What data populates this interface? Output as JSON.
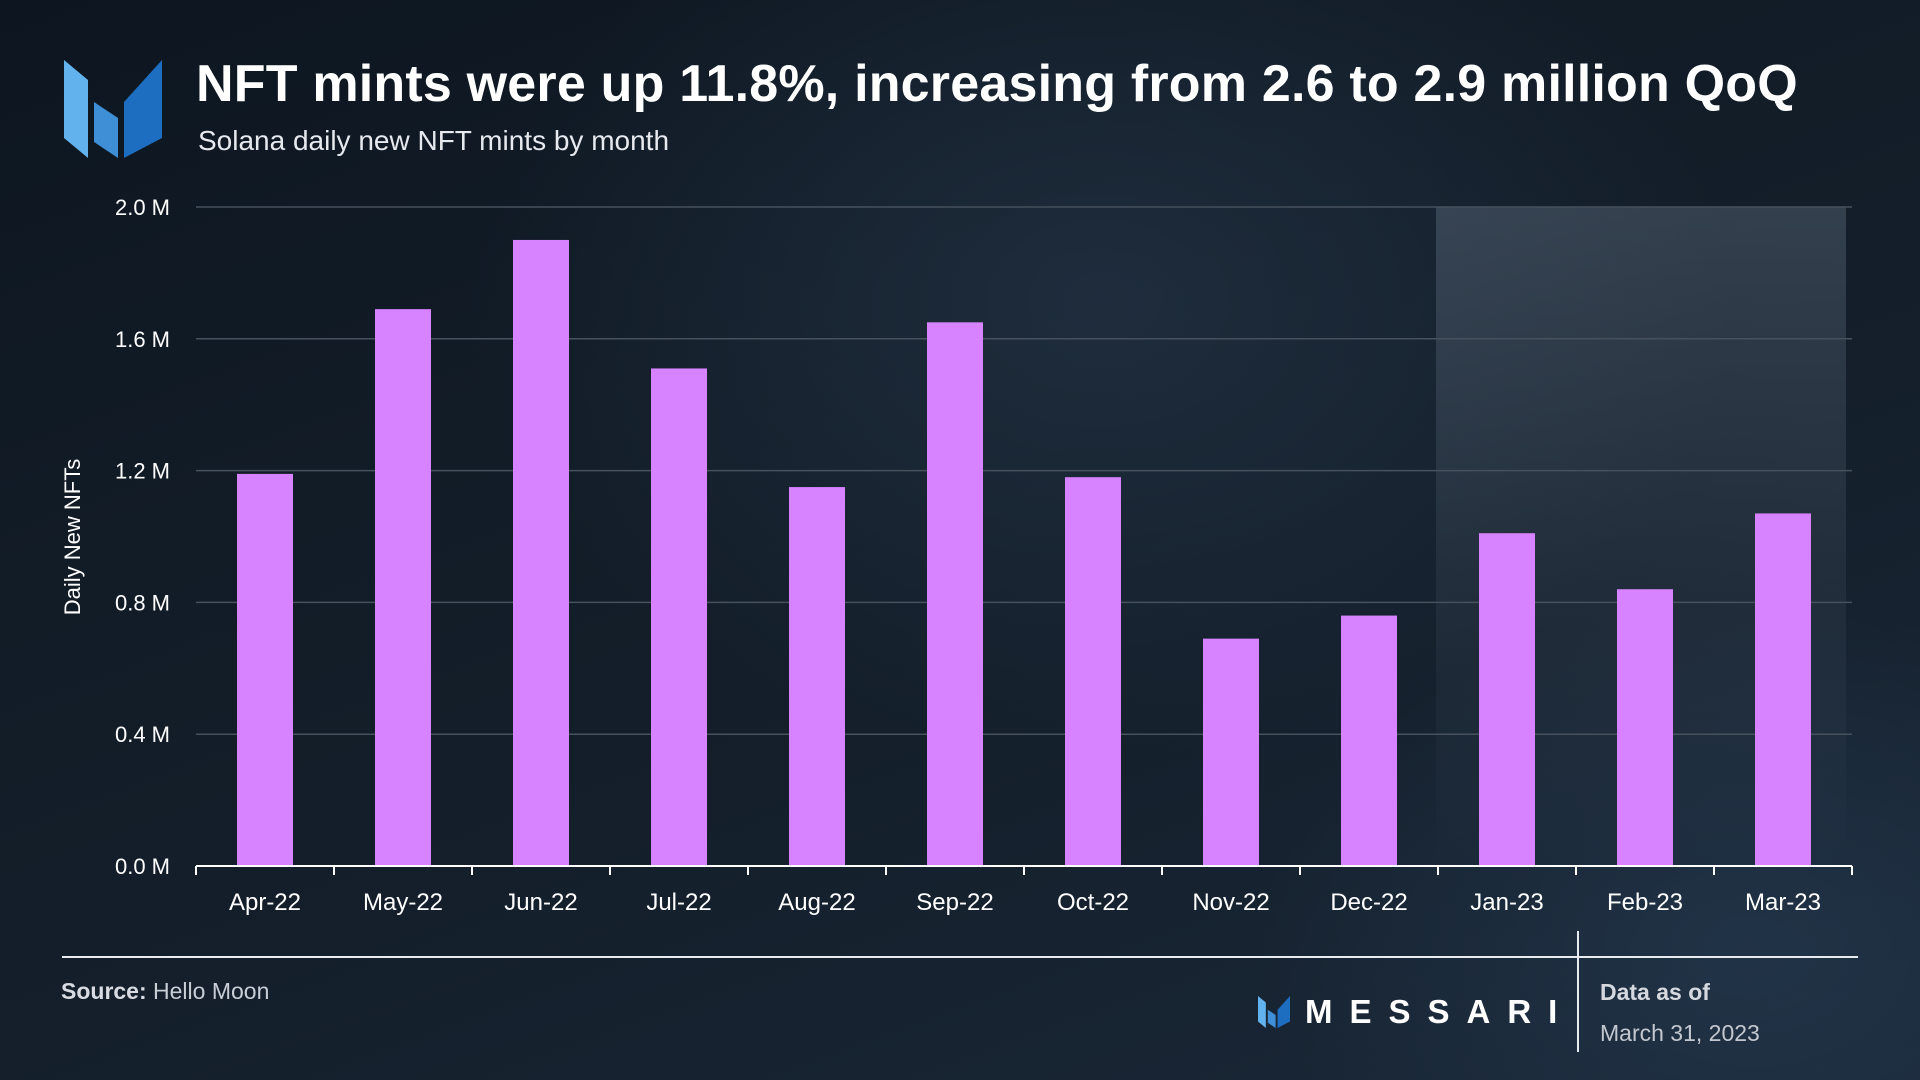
{
  "header": {
    "title": "NFT mints were up 11.8%, increasing from 2.6 to 2.9 million QoQ",
    "subtitle": "Solana daily new NFT mints by month"
  },
  "colors": {
    "bar": "#d783ff",
    "grid": "#46515d",
    "axis": "#ffffff",
    "highlight": "#8fa0b4",
    "logo_light": "#62b2ee",
    "logo_mid": "#3f8fd6",
    "logo_dark": "#1d6ec1"
  },
  "chart_data": {
    "type": "bar",
    "title": "NFT mints were up 11.8%, increasing from 2.6 to 2.9 million QoQ",
    "subtitle": "Solana daily new NFT mints by month",
    "xlabel": "",
    "ylabel": "Daily New NFTs",
    "categories": [
      "Apr-22",
      "May-22",
      "Jun-22",
      "Jul-22",
      "Aug-22",
      "Sep-22",
      "Oct-22",
      "Nov-22",
      "Dec-22",
      "Jan-23",
      "Feb-23",
      "Mar-23"
    ],
    "series": [
      {
        "name": "Daily New NFTs",
        "values": [
          1.19,
          1.69,
          1.9,
          1.51,
          1.15,
          1.65,
          1.18,
          0.69,
          0.76,
          1.01,
          0.84,
          1.07
        ]
      }
    ],
    "ylim": [
      0,
      2.0
    ],
    "yticks": [
      0.0,
      0.4,
      0.8,
      1.2,
      1.6,
      2.0
    ],
    "ytick_labels": [
      "0.0 M",
      "0.4 M",
      "0.8 M",
      "1.2 M",
      "1.6 M",
      "2.0 M"
    ],
    "grid": true,
    "highlight_start_category": "Jan-23",
    "highlight_end_category": "Mar-23"
  },
  "footer": {
    "source_label": "Source:",
    "source_value": "Hello Moon",
    "brand": "MESSARI",
    "as_of_label": "Data as of",
    "as_of_date": "March 31, 2023"
  }
}
